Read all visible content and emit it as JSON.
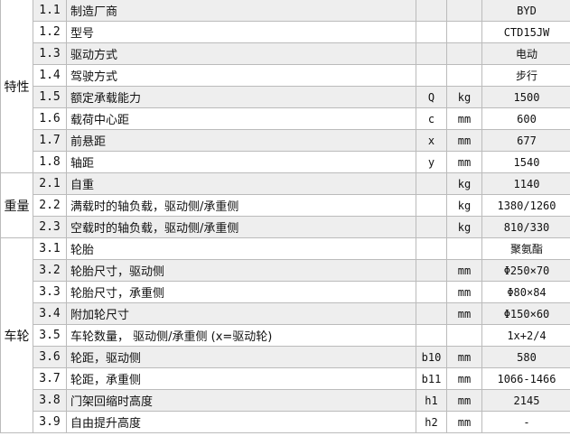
{
  "groups": [
    {
      "label": "特性",
      "rows": [
        {
          "no": "1.1",
          "name": "制造厂商",
          "sym": "",
          "unit": "",
          "val": "BYD"
        },
        {
          "no": "1.2",
          "name": "型号",
          "sym": "",
          "unit": "",
          "val": "CTD15JW"
        },
        {
          "no": "1.3",
          "name": "驱动方式",
          "sym": "",
          "unit": "",
          "val": "电动"
        },
        {
          "no": "1.4",
          "name": "驾驶方式",
          "sym": "",
          "unit": "",
          "val": "步行"
        },
        {
          "no": "1.5",
          "name": "额定承载能力",
          "sym": "Q",
          "unit": "kg",
          "val": "1500"
        },
        {
          "no": "1.6",
          "name": "载荷中心距",
          "sym": "c",
          "unit": "mm",
          "val": "600"
        },
        {
          "no": "1.7",
          "name": "前悬距",
          "sym": "x",
          "unit": "mm",
          "val": "677"
        },
        {
          "no": "1.8",
          "name": "轴距",
          "sym": "y",
          "unit": "mm",
          "val": "1540"
        }
      ]
    },
    {
      "label": "重量",
      "rows": [
        {
          "no": "2.1",
          "name": "自重",
          "sym": "",
          "unit": "kg",
          "val": "1140"
        },
        {
          "no": "2.2",
          "name": "满载时的轴负载，驱动侧/承重侧",
          "sym": "",
          "unit": "kg",
          "val": "1380/1260"
        },
        {
          "no": "2.3",
          "name": "空载时的轴负载，驱动侧/承重侧",
          "sym": "",
          "unit": "kg",
          "val": "810/330"
        }
      ]
    },
    {
      "label": "车轮",
      "rows": [
        {
          "no": "3.1",
          "name": "轮胎",
          "sym": "",
          "unit": "",
          "val": "聚氨酯"
        },
        {
          "no": "3.2",
          "name": "轮胎尺寸，驱动侧",
          "sym": "",
          "unit": "mm",
          "val": "Φ250×70"
        },
        {
          "no": "3.3",
          "name": "轮胎尺寸，承重侧",
          "sym": "",
          "unit": "mm",
          "val": "Φ80×84"
        },
        {
          "no": "3.4",
          "name": "附加轮尺寸",
          "sym": "",
          "unit": "mm",
          "val": "Φ150×60"
        },
        {
          "no": "3.5",
          "name": "车轮数量， 驱动侧/承重侧 (x=驱动轮)",
          "sym": "",
          "unit": "",
          "val": "1x+2/4"
        },
        {
          "no": "3.6",
          "name": "轮距，驱动侧",
          "sym": "b10",
          "unit": "mm",
          "val": "580"
        },
        {
          "no": "3.7",
          "name": "轮距，承重侧",
          "sym": "b11",
          "unit": "mm",
          "val": "1066-1466"
        },
        {
          "no": "3.8",
          "name": "门架回缩时高度",
          "sym": "h1",
          "unit": "mm",
          "val": "2145"
        },
        {
          "no": "3.9",
          "name": "自由提升高度",
          "sym": "h2",
          "unit": "mm",
          "val": "-"
        }
      ]
    }
  ]
}
